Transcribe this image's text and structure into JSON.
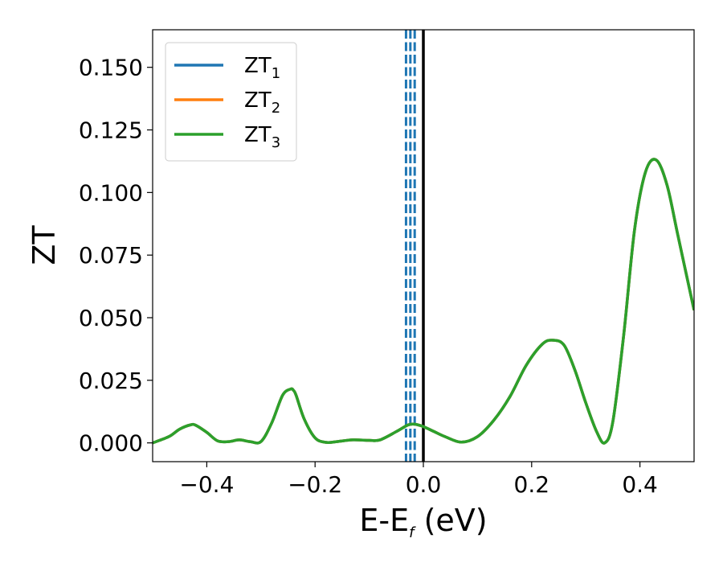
{
  "chart_data": {
    "type": "line",
    "title": "",
    "xlabel": "E-E",
    "xlabel_sub": "f",
    "xlabel_unit": " (eV)",
    "ylabel": "ZT",
    "xlim": [
      -0.5,
      0.5
    ],
    "ylim": [
      -0.0075,
      0.165
    ],
    "xticks": [
      -0.4,
      -0.2,
      0.0,
      0.2,
      0.4
    ],
    "xtick_labels": [
      "−0.4",
      "−0.2",
      "0.0",
      "0.2",
      "0.4"
    ],
    "yticks": [
      0.0,
      0.025,
      0.05,
      0.075,
      0.1,
      0.125,
      0.15
    ],
    "ytick_labels": [
      "0.000",
      "0.025",
      "0.050",
      "0.075",
      "0.100",
      "0.125",
      "0.150"
    ],
    "grid": false,
    "legend_position": "top-left",
    "x": [
      -0.5,
      -0.47,
      -0.45,
      -0.43,
      -0.42,
      -0.4,
      -0.38,
      -0.36,
      -0.34,
      -0.32,
      -0.3,
      -0.28,
      -0.26,
      -0.245,
      -0.24,
      -0.235,
      -0.22,
      -0.2,
      -0.18,
      -0.16,
      -0.13,
      -0.1,
      -0.08,
      -0.05,
      -0.03,
      -0.02,
      -0.01,
      0.0,
      0.02,
      0.04,
      0.07,
      0.1,
      0.13,
      0.16,
      0.19,
      0.22,
      0.24,
      0.26,
      0.28,
      0.3,
      0.32,
      0.335,
      0.35,
      0.37,
      0.39,
      0.41,
      0.43,
      0.45,
      0.47,
      0.5
    ],
    "series": [
      {
        "name": "ZT",
        "name_sub": "1",
        "color": "#1f77b4",
        "y": [
          0.0,
          0.0025,
          0.0055,
          0.0072,
          0.007,
          0.0042,
          0.0008,
          0.0005,
          0.0012,
          0.0005,
          0.0005,
          0.008,
          0.019,
          0.0215,
          0.021,
          0.019,
          0.0095,
          0.002,
          0.0002,
          0.0005,
          0.0012,
          0.001,
          0.0012,
          0.0045,
          0.007,
          0.0075,
          0.0072,
          0.0065,
          0.0045,
          0.0025,
          0.0003,
          0.0025,
          0.009,
          0.0185,
          0.031,
          0.0395,
          0.041,
          0.039,
          0.029,
          0.016,
          0.0045,
          0.0,
          0.0085,
          0.043,
          0.085,
          0.108,
          0.113,
          0.103,
          0.083,
          0.053
        ]
      },
      {
        "name": "ZT",
        "name_sub": "2",
        "color": "#ff7f0e",
        "y": [
          0.0,
          0.0025,
          0.0055,
          0.0072,
          0.007,
          0.0042,
          0.0008,
          0.0005,
          0.0012,
          0.0005,
          0.0005,
          0.008,
          0.019,
          0.0215,
          0.021,
          0.019,
          0.0095,
          0.002,
          0.0002,
          0.0005,
          0.0012,
          0.001,
          0.0012,
          0.0045,
          0.007,
          0.0075,
          0.0072,
          0.0065,
          0.0045,
          0.0025,
          0.0003,
          0.0025,
          0.009,
          0.0185,
          0.031,
          0.0395,
          0.041,
          0.039,
          0.029,
          0.016,
          0.0045,
          0.0,
          0.0085,
          0.043,
          0.085,
          0.108,
          0.113,
          0.103,
          0.083,
          0.053
        ]
      },
      {
        "name": "ZT",
        "name_sub": "3",
        "color": "#2ca02c",
        "y": [
          0.0,
          0.0025,
          0.0055,
          0.0072,
          0.007,
          0.0042,
          0.0008,
          0.0005,
          0.0012,
          0.0005,
          0.0005,
          0.008,
          0.019,
          0.0215,
          0.021,
          0.019,
          0.0095,
          0.002,
          0.0002,
          0.0005,
          0.0012,
          0.001,
          0.0012,
          0.0045,
          0.007,
          0.0075,
          0.0072,
          0.0065,
          0.0045,
          0.0025,
          0.0003,
          0.0025,
          0.009,
          0.0185,
          0.031,
          0.0395,
          0.041,
          0.039,
          0.029,
          0.016,
          0.0045,
          0.0,
          0.0085,
          0.043,
          0.085,
          0.108,
          0.113,
          0.103,
          0.083,
          0.053
        ]
      }
    ],
    "vertical_lines": [
      {
        "x": -0.032,
        "style": "dashed",
        "color": "#1f77b4"
      },
      {
        "x": -0.024,
        "style": "dashed",
        "color": "#1f77b4"
      },
      {
        "x": -0.016,
        "style": "dashed",
        "color": "#1f77b4"
      },
      {
        "x": 0.0,
        "style": "solid",
        "color": "#000000"
      }
    ]
  }
}
